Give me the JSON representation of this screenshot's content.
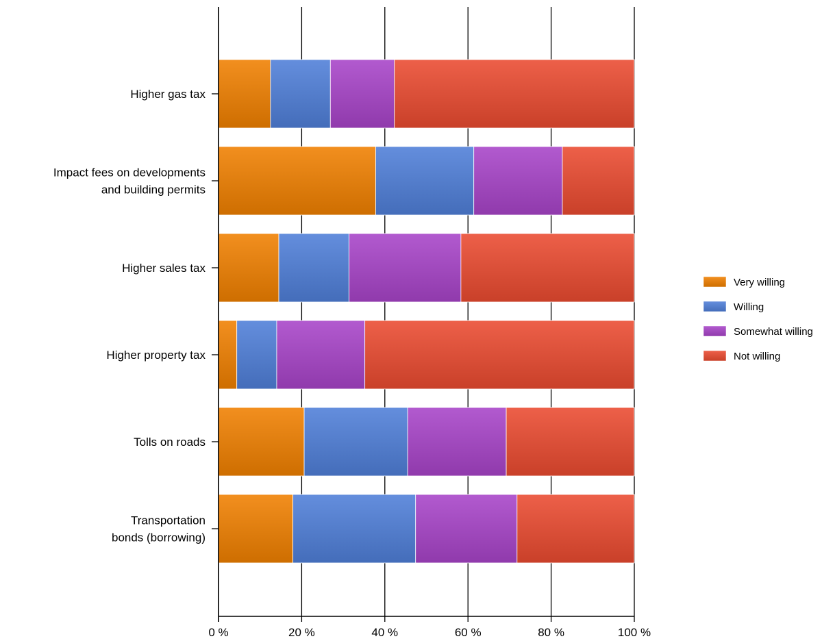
{
  "chart_data": {
    "type": "bar",
    "orientation": "horizontal",
    "stacked": "percent",
    "categories": [
      [
        "Higher gas tax"
      ],
      [
        "Impact fees on developments",
        "and building permits"
      ],
      [
        "Higher sales tax"
      ],
      [
        "Higher property tax"
      ],
      [
        "Tolls on roads"
      ],
      [
        "Transportation",
        "bonds (borrowing)"
      ]
    ],
    "series": [
      {
        "name": "Very willing",
        "color": "#f08000",
        "values": [
          12.5,
          37.8,
          14.5,
          4.4,
          20.6,
          17.9
        ]
      },
      {
        "name": "Willing",
        "color": "#4f7fd8",
        "values": [
          14.4,
          23.6,
          16.9,
          9.6,
          24.9,
          29.5
        ]
      },
      {
        "name": "Somewhat willing",
        "color": "#a844c8",
        "values": [
          15.4,
          21.3,
          26.9,
          21.2,
          23.7,
          24.4
        ]
      },
      {
        "name": "Not willing",
        "color": "#ea4a30",
        "values": [
          57.7,
          17.3,
          41.7,
          64.8,
          30.8,
          28.2
        ]
      }
    ],
    "xlim": [
      0,
      100
    ],
    "xticks": [
      "0 %",
      "20 %",
      "40 %",
      "60 %",
      "80 %",
      "100 %"
    ],
    "grid": true,
    "legend": "right"
  }
}
